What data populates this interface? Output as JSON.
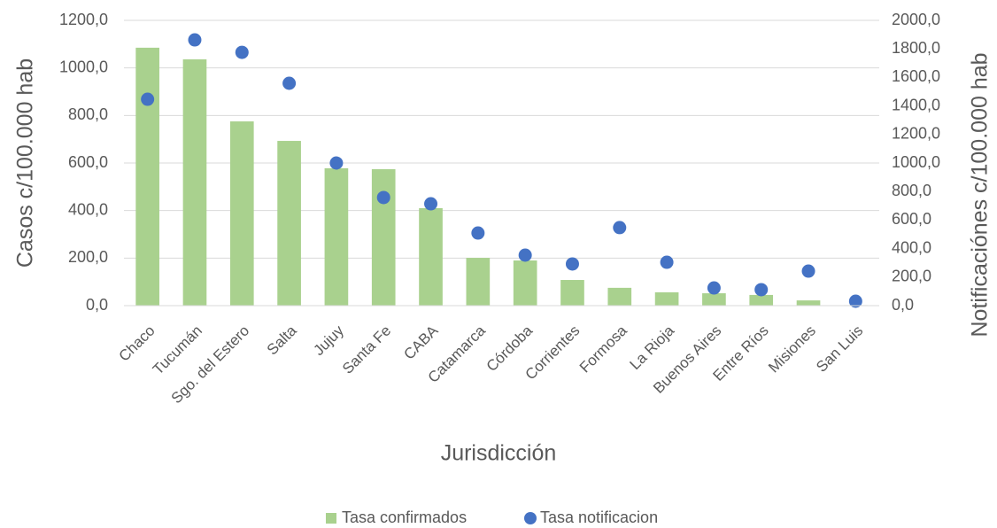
{
  "chart_data": {
    "type": "combo",
    "x_label": "Jurisdicción",
    "y_label": "Casos c/100.000 hab",
    "y2_label": "Notificaciónes c/100.000 hab",
    "categories": [
      "Chaco",
      "Tucumán",
      "Sgo. del Estero",
      "Salta",
      "Jujuy",
      "Santa Fe",
      "CABA",
      "Catamarca",
      "Córdoba",
      "Corrientes",
      "Formosa",
      "La Rioja",
      "Buenos Aires",
      "Entre Ríos",
      "Misiones",
      "San Luis"
    ],
    "series": [
      {
        "name": "Tasa confirmados",
        "type": "bar",
        "color": "#a9d18e",
        "values": [
          1085,
          1036,
          775,
          693,
          578,
          574,
          410,
          201,
          190,
          108,
          75,
          56,
          52,
          45,
          22,
          2
        ]
      },
      {
        "name": "Tasa notificacion",
        "type": "scatter",
        "axis": "y2",
        "color": "#4472c4",
        "values": [
          1447,
          1863,
          1776,
          1559,
          1000,
          758,
          714,
          509,
          354,
          292,
          547,
          304,
          124,
          112,
          242,
          31
        ]
      }
    ],
    "ylim": [
      0,
      1200
    ],
    "yticks": [
      {
        "value": 0,
        "label": "0,0"
      },
      {
        "value": 200,
        "label": "200,0"
      },
      {
        "value": 400,
        "label": "400,0"
      },
      {
        "value": 600,
        "label": "600,0"
      },
      {
        "value": 800,
        "label": "800,0"
      },
      {
        "value": 1000,
        "label": "1000,0"
      },
      {
        "value": 1200,
        "label": "1200,0"
      }
    ],
    "y2lim": [
      0,
      2000
    ],
    "y2ticks": [
      {
        "value": 0,
        "label": "0,0"
      },
      {
        "value": 200,
        "label": "200,0"
      },
      {
        "value": 400,
        "label": "400,0"
      },
      {
        "value": 600,
        "label": "600,0"
      },
      {
        "value": 800,
        "label": "800,0"
      },
      {
        "value": 1000,
        "label": "1000,0"
      },
      {
        "value": 1200,
        "label": "1200,0"
      },
      {
        "value": 1400,
        "label": "1400,0"
      },
      {
        "value": 1600,
        "label": "1600,0"
      },
      {
        "value": 1800,
        "label": "1800,0"
      },
      {
        "value": 2000,
        "label": "2000,0"
      }
    ],
    "grid": true,
    "legend": "bottom"
  }
}
